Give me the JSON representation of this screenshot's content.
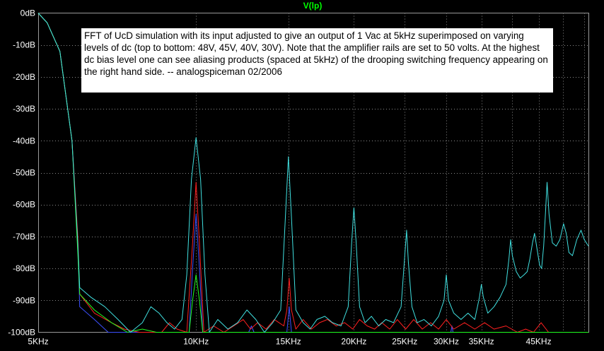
{
  "chart_data": {
    "type": "line",
    "title": "V(lp)",
    "annotation": "FFT of UcD simulation with its input adjusted to give an output of 1 Vac at 5kHz superimposed on varying levels of dc (top to bottom: 48V, 45V, 40V, 30V).  Note that the amplifier rails are set to 50 volts.  At the highest dc bias level one can see aliasing products (spaced at 5kHz) of the drooping switching frequency appearing on the right hand side. -- analogspiceman  02/2006",
    "xlabel": "",
    "ylabel": "",
    "xscale": "log",
    "xlim_khz": [
      5,
      56
    ],
    "ylim": [
      -100,
      0
    ],
    "yticks": [
      "0dB",
      "-10dB",
      "-20dB",
      "-30dB",
      "-40dB",
      "-50dB",
      "-60dB",
      "-70dB",
      "-80dB",
      "-90dB",
      "-100dB"
    ],
    "xticks": [
      {
        "khz": 5,
        "label": "5KHz"
      },
      {
        "khz": 10,
        "label": "10KHz"
      },
      {
        "khz": 15,
        "label": "15KHz"
      },
      {
        "khz": 20,
        "label": "20KHz"
      },
      {
        "khz": 25,
        "label": "25KHz"
      },
      {
        "khz": 30,
        "label": "30KHz"
      },
      {
        "khz": 35,
        "label": "35KHz"
      },
      {
        "khz": 45,
        "label": "45KHz"
      }
    ],
    "grid": true,
    "grid_color": "#8a8a8a",
    "series": [
      {
        "color": "#3c50ff",
        "points": [
          [
            5,
            0
          ],
          [
            5.2,
            -3
          ],
          [
            5.5,
            -12
          ],
          [
            5.8,
            -40
          ],
          [
            5.95,
            -72
          ],
          [
            6.0,
            -92
          ],
          [
            6.4,
            -96
          ],
          [
            6.8,
            -100
          ],
          [
            9.7,
            -100
          ],
          [
            9.85,
            -80
          ],
          [
            10,
            -63
          ],
          [
            10.15,
            -80
          ],
          [
            10.3,
            -100
          ],
          [
            12.6,
            -100
          ],
          [
            12.75,
            -98
          ],
          [
            12.9,
            -100
          ],
          [
            14.9,
            -100
          ],
          [
            15.05,
            -92
          ],
          [
            15.2,
            -100
          ],
          [
            30.6,
            -100
          ],
          [
            30.75,
            -98
          ],
          [
            30.9,
            -100
          ],
          [
            56,
            -100
          ]
        ]
      },
      {
        "color": "#ff2020",
        "points": [
          [
            5,
            0
          ],
          [
            5.2,
            -3
          ],
          [
            5.5,
            -12
          ],
          [
            5.8,
            -40
          ],
          [
            5.95,
            -70
          ],
          [
            6.0,
            -88
          ],
          [
            6.4,
            -94
          ],
          [
            6.9,
            -97
          ],
          [
            7.3,
            -99
          ],
          [
            7.8,
            -100
          ],
          [
            8.6,
            -100
          ],
          [
            8.9,
            -97
          ],
          [
            9.2,
            -99
          ],
          [
            9.6,
            -100
          ],
          [
            9.85,
            -72
          ],
          [
            10,
            -53
          ],
          [
            10.15,
            -72
          ],
          [
            10.35,
            -100
          ],
          [
            10.8,
            -98
          ],
          [
            11.3,
            -100
          ],
          [
            11.8,
            -98
          ],
          [
            12.3,
            -96
          ],
          [
            12.7,
            -99
          ],
          [
            13.1,
            -97
          ],
          [
            13.6,
            -99
          ],
          [
            14.1,
            -96
          ],
          [
            14.7,
            -98
          ],
          [
            14.9,
            -93
          ],
          [
            15.05,
            -83
          ],
          [
            15.2,
            -93
          ],
          [
            15.5,
            -99
          ],
          [
            16,
            -96
          ],
          [
            16.6,
            -99
          ],
          [
            17.2,
            -97
          ],
          [
            17.8,
            -96
          ],
          [
            18.5,
            -98
          ],
          [
            19.2,
            -97
          ],
          [
            19.9,
            -99
          ],
          [
            20.5,
            -96
          ],
          [
            21.2,
            -98
          ],
          [
            21.9,
            -99
          ],
          [
            22.6,
            -97
          ],
          [
            23.4,
            -99
          ],
          [
            24.2,
            -96
          ],
          [
            25.1,
            -99
          ],
          [
            26,
            -96
          ],
          [
            27,
            -99
          ],
          [
            28,
            -97
          ],
          [
            29,
            -99
          ],
          [
            30,
            -96
          ],
          [
            31,
            -99
          ],
          [
            32.5,
            -97
          ],
          [
            34,
            -99
          ],
          [
            35.5,
            -97
          ],
          [
            37,
            -99
          ],
          [
            39,
            -98
          ],
          [
            41,
            -100
          ],
          [
            42.5,
            -99
          ],
          [
            44,
            -100
          ],
          [
            45.5,
            -97
          ],
          [
            47,
            -100
          ],
          [
            56,
            -100
          ]
        ]
      },
      {
        "color": "#20ff20",
        "points": [
          [
            5,
            0
          ],
          [
            5.2,
            -3
          ],
          [
            5.5,
            -12
          ],
          [
            5.8,
            -40
          ],
          [
            5.95,
            -75
          ],
          [
            6.0,
            -88
          ],
          [
            6.4,
            -93
          ],
          [
            6.9,
            -97
          ],
          [
            7.4,
            -100
          ],
          [
            7.9,
            -99
          ],
          [
            8.4,
            -100
          ],
          [
            9.7,
            -100
          ],
          [
            9.85,
            -90
          ],
          [
            10,
            -82
          ],
          [
            10.15,
            -90
          ],
          [
            10.3,
            -100
          ],
          [
            56,
            -100
          ]
        ]
      },
      {
        "color": "#40e0e0",
        "points": [
          [
            5,
            0
          ],
          [
            5.2,
            -3
          ],
          [
            5.5,
            -12
          ],
          [
            5.8,
            -40
          ],
          [
            5.95,
            -72
          ],
          [
            6.0,
            -86
          ],
          [
            6.3,
            -89
          ],
          [
            6.7,
            -92
          ],
          [
            7.1,
            -96
          ],
          [
            7.5,
            -100
          ],
          [
            7.9,
            -97
          ],
          [
            8.2,
            -92
          ],
          [
            8.5,
            -94
          ],
          [
            8.8,
            -97
          ],
          [
            9.1,
            -99
          ],
          [
            9.4,
            -96
          ],
          [
            9.6,
            -82
          ],
          [
            9.8,
            -52
          ],
          [
            10,
            -39
          ],
          [
            10.2,
            -52
          ],
          [
            10.4,
            -82
          ],
          [
            10.6,
            -100
          ],
          [
            11,
            -96
          ],
          [
            11.5,
            -99
          ],
          [
            12,
            -97
          ],
          [
            12.5,
            -93
          ],
          [
            13,
            -96
          ],
          [
            13.5,
            -100
          ],
          [
            14,
            -97
          ],
          [
            14.5,
            -93
          ],
          [
            14.8,
            -64
          ],
          [
            15,
            -45
          ],
          [
            15.2,
            -64
          ],
          [
            15.5,
            -93
          ],
          [
            16,
            -97
          ],
          [
            16.5,
            -99
          ],
          [
            17,
            -96
          ],
          [
            17.6,
            -95
          ],
          [
            18.2,
            -97
          ],
          [
            18.9,
            -98
          ],
          [
            19.5,
            -92
          ],
          [
            19.8,
            -72
          ],
          [
            20,
            -61
          ],
          [
            20.2,
            -72
          ],
          [
            20.5,
            -92
          ],
          [
            21,
            -97
          ],
          [
            21.6,
            -95
          ],
          [
            22.3,
            -98
          ],
          [
            23,
            -96
          ],
          [
            23.8,
            -97
          ],
          [
            24.6,
            -92
          ],
          [
            25,
            -76
          ],
          [
            25.2,
            -68
          ],
          [
            25.4,
            -78
          ],
          [
            25.8,
            -92
          ],
          [
            26.4,
            -97
          ],
          [
            27.2,
            -96
          ],
          [
            28.1,
            -98
          ],
          [
            29,
            -95
          ],
          [
            29.7,
            -90
          ],
          [
            30,
            -82
          ],
          [
            30.3,
            -90
          ],
          [
            31,
            -94
          ],
          [
            32,
            -96
          ],
          [
            33,
            -94
          ],
          [
            34,
            -96
          ],
          [
            34.7,
            -89
          ],
          [
            35,
            -85
          ],
          [
            35.3,
            -89
          ],
          [
            36,
            -94
          ],
          [
            37,
            -92
          ],
          [
            38,
            -89
          ],
          [
            39,
            -85
          ],
          [
            39.5,
            -77
          ],
          [
            39.8,
            -71
          ],
          [
            40.1,
            -76
          ],
          [
            40.8,
            -81
          ],
          [
            41.5,
            -83
          ],
          [
            42.2,
            -82
          ],
          [
            42.8,
            -81
          ],
          [
            43.3,
            -77
          ],
          [
            43.8,
            -72
          ],
          [
            44.2,
            -69
          ],
          [
            44.6,
            -73
          ],
          [
            45.2,
            -79
          ],
          [
            45.6,
            -80
          ],
          [
            46,
            -73
          ],
          [
            46.4,
            -62
          ],
          [
            46.7,
            -53
          ],
          [
            47.1,
            -63
          ],
          [
            47.8,
            -72
          ],
          [
            48.6,
            -73
          ],
          [
            49.4,
            -71
          ],
          [
            50.2,
            -66
          ],
          [
            50.8,
            -69
          ],
          [
            51.4,
            -75
          ],
          [
            52.2,
            -76
          ],
          [
            53.2,
            -71
          ],
          [
            54.2,
            -68
          ],
          [
            55,
            -71
          ],
          [
            56,
            -73
          ]
        ]
      }
    ]
  }
}
